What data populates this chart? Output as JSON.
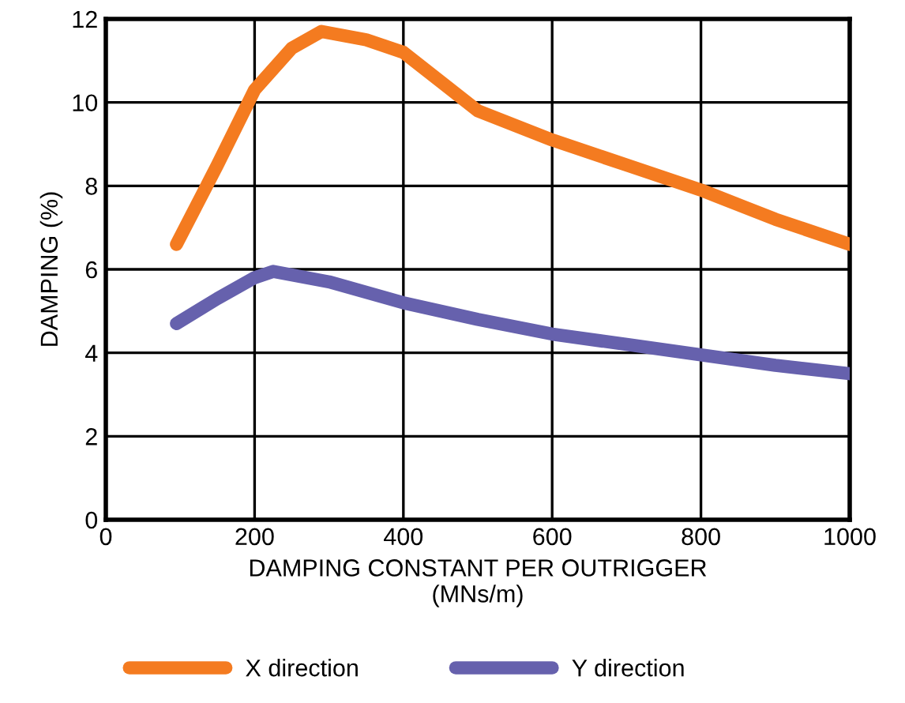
{
  "chart_data": {
    "type": "line",
    "xlabel": "DAMPING CONSTANT PER OUTRIGGER\n(MNs/m)",
    "ylabel": "DAMPING (%)",
    "xlim": [
      0,
      1000
    ],
    "xticks": [
      0,
      200,
      400,
      600,
      800,
      1000
    ],
    "ylim": [
      0,
      12
    ],
    "yticks": [
      0,
      2,
      4,
      6,
      8,
      10,
      12
    ],
    "grid": true,
    "legend": "bottom",
    "marker": "none",
    "line_style": "solid",
    "series": [
      {
        "name": "X direction",
        "color": "#f47b20",
        "x": [
          95,
          150,
          200,
          250,
          290,
          350,
          400,
          450,
          500,
          600,
          700,
          800,
          900,
          1000
        ],
        "values": [
          6.6,
          8.5,
          10.3,
          11.3,
          11.7,
          11.5,
          11.2,
          10.5,
          9.8,
          9.1,
          8.5,
          7.9,
          7.2,
          6.6
        ]
      },
      {
        "name": "Y direction",
        "color": "#6661ad",
        "x": [
          95,
          150,
          200,
          225,
          300,
          400,
          500,
          600,
          700,
          800,
          900,
          1000
        ],
        "values": [
          4.7,
          5.3,
          5.8,
          5.95,
          5.7,
          5.2,
          4.8,
          4.45,
          4.2,
          3.95,
          3.7,
          3.5
        ]
      }
    ]
  }
}
